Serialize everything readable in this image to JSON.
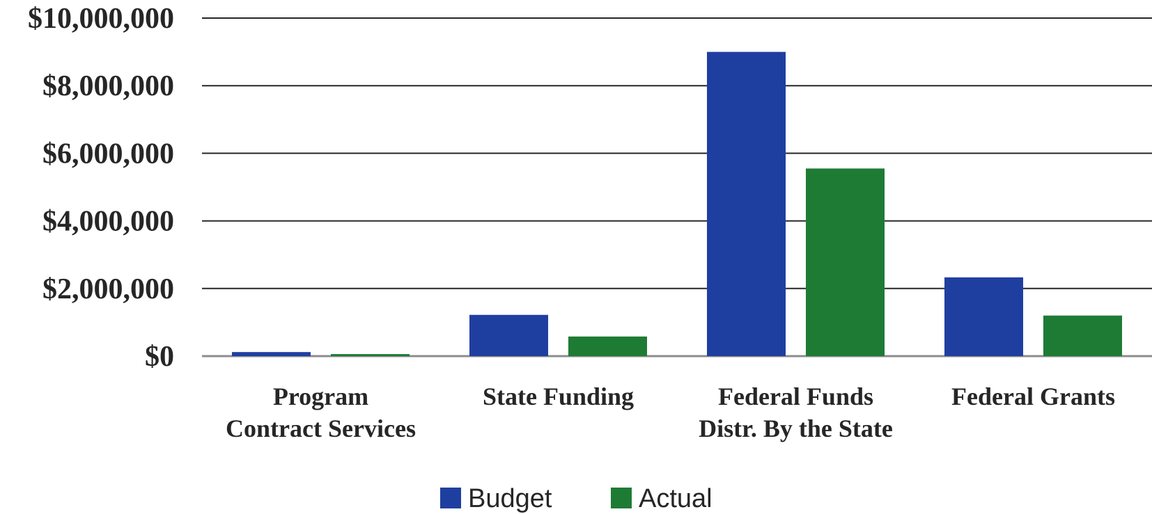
{
  "chart_data": {
    "type": "bar",
    "categories": [
      [
        "Program",
        "Contract Services"
      ],
      [
        "State Funding"
      ],
      [
        "Federal Funds",
        "Distr. By the State"
      ],
      [
        "Federal Grants"
      ]
    ],
    "series": [
      {
        "name": "Budget",
        "color": "#1f3fa0",
        "values": [
          120000,
          1220000,
          9000000,
          2330000
        ]
      },
      {
        "name": "Actual",
        "color": "#1e7b34",
        "values": [
          60000,
          580000,
          5550000,
          1200000
        ]
      }
    ],
    "yticks": [
      "$0",
      "$2,000,000",
      "$4,000,000",
      "$6,000,000",
      "$8,000,000",
      "$10,000,000"
    ],
    "ylim": [
      0,
      10000000
    ],
    "grid": true,
    "legend_position": "bottom"
  }
}
